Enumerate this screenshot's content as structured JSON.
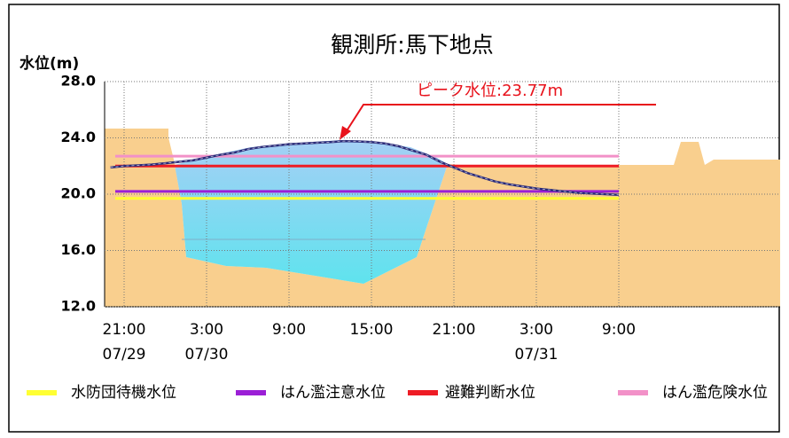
{
  "chart_data": {
    "type": "line",
    "title": "観測所:馬下地点",
    "y_label": "水位(m)",
    "annotation": "ピーク水位:23.77m",
    "ylim": [
      12,
      28
    ],
    "yticks": [
      {
        "value": 12,
        "label": "12.0"
      },
      {
        "value": 16,
        "label": "16.0"
      },
      {
        "value": 20,
        "label": "20.0"
      },
      {
        "value": 24,
        "label": "24.0"
      },
      {
        "value": 28,
        "label": "28.0"
      }
    ],
    "grid": true,
    "categories": [
      null,
      "21:00",
      null,
      null,
      null,
      null,
      null,
      "3:00",
      null,
      null,
      null,
      null,
      null,
      "9:00",
      null,
      null,
      null,
      null,
      null,
      "15:00",
      null,
      null,
      null,
      null,
      null,
      "21:00",
      null,
      null,
      null,
      null,
      null,
      "3:00",
      null,
      null,
      null,
      null,
      null,
      "9:00"
    ],
    "dates": [
      null,
      "07/29",
      null,
      null,
      null,
      null,
      null,
      "07/30",
      null,
      null,
      null,
      null,
      null,
      null,
      null,
      null,
      null,
      null,
      null,
      null,
      null,
      null,
      null,
      null,
      null,
      null,
      null,
      null,
      null,
      null,
      null,
      "07/31",
      null,
      null,
      null,
      null,
      null,
      null
    ],
    "series": [
      {
        "name": "水位",
        "color": "#2a2a78",
        "values": [
          21.9,
          22.0,
          22.05,
          22.1,
          22.2,
          22.3,
          22.4,
          22.6,
          22.8,
          22.95,
          23.2,
          23.35,
          23.45,
          23.55,
          23.6,
          23.65,
          23.7,
          23.77,
          23.75,
          23.7,
          23.6,
          23.4,
          23.1,
          22.8,
          22.3,
          21.9,
          21.5,
          21.2,
          20.9,
          20.7,
          20.55,
          20.4,
          20.3,
          20.2,
          20.1,
          20.05,
          20.0,
          19.95
        ]
      }
    ],
    "thresholds": [
      {
        "name": "水防団待機水位",
        "color": "#ffff33",
        "value": 19.7
      },
      {
        "name": "はん濫注意水位",
        "color": "#9b1fd6",
        "value": 20.2
      },
      {
        "name": "避難判断水位",
        "color": "#ee1c25",
        "value": 22.0
      },
      {
        "name": "はん濫危険水位",
        "color": "#f291c8",
        "value": 22.7
      }
    ]
  }
}
